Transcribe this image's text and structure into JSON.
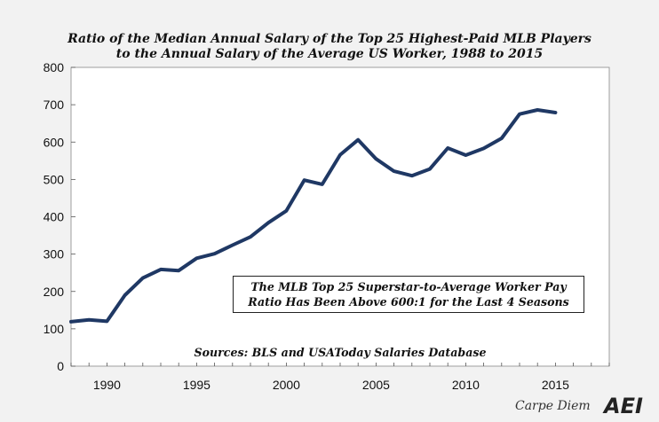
{
  "chart_data": {
    "type": "line",
    "title_lines": [
      "Ratio of the Median Annual Salary of the Top 25 Highest-Paid MLB Players",
      "to the Annual Salary of the Average US Worker, 1988 to 2015"
    ],
    "xlabel": "",
    "ylabel": "",
    "xlim": [
      1988,
      2018
    ],
    "ylim": [
      0,
      800
    ],
    "y_ticks": [
      0,
      100,
      200,
      300,
      400,
      500,
      600,
      700,
      800
    ],
    "x_ticks": [
      1990,
      1995,
      2000,
      2005,
      2010,
      2015
    ],
    "grid": false,
    "line_color": "#1f3864",
    "series": [
      {
        "x": [
          1988,
          1989,
          1990,
          1991,
          1992,
          1993,
          1994,
          1995,
          1996,
          1997,
          1998,
          1999,
          2000,
          2001,
          2002,
          2003,
          2004,
          2005,
          2006,
          2007,
          2008,
          2009,
          2010,
          2011,
          2012,
          2013,
          2014,
          2015
        ],
        "y": [
          119,
          124,
          120,
          190,
          236,
          259,
          256,
          289,
          301,
          324,
          346,
          384,
          416,
          498,
          487,
          566,
          606,
          555,
          522,
          510,
          528,
          584,
          565,
          583,
          610,
          675,
          686,
          679
        ]
      }
    ],
    "annotation_lines": [
      "The MLB Top 25 Superstar-to-Average Worker Pay",
      "Ratio Has Been Above 600:1 for the Last 4 Seasons"
    ],
    "sources": "Sources: BLS and USAToday Salaries Database"
  },
  "branding": {
    "blog": "Carpe Diem",
    "logo": "AEI"
  }
}
